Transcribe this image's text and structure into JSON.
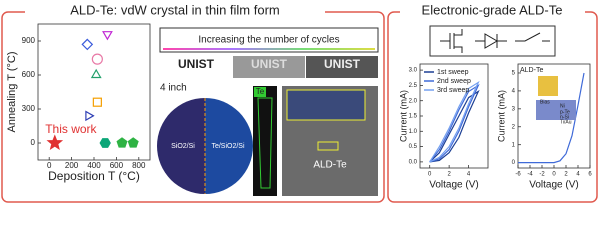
{
  "left_panel": {
    "title": "ALD-Te: vdW crystal in thin film form",
    "scatter": {
      "type": "scatter",
      "xlabel": "Deposition T (°C)",
      "ylabel": "Annealing T (°C)",
      "xlim": [
        -100,
        900
      ],
      "ylim": [
        -150,
        1050
      ],
      "xticks": [
        0,
        200,
        400,
        600,
        800
      ],
      "yticks": [
        0,
        300,
        600,
        900
      ],
      "annotation": "This work",
      "points": [
        {
          "x": 340,
          "y": 870,
          "marker": "diamond",
          "color": "#3b5bdb",
          "filled": false
        },
        {
          "x": 520,
          "y": 960,
          "marker": "triangle-down",
          "color": "#c026d3",
          "filled": false
        },
        {
          "x": 430,
          "y": 740,
          "marker": "circle",
          "color": "#e879a6",
          "filled": false
        },
        {
          "x": 420,
          "y": 600,
          "marker": "triangle-up",
          "color": "#22a06b",
          "filled": false
        },
        {
          "x": 430,
          "y": 360,
          "marker": "square",
          "color": "#f59f00",
          "filled": false
        },
        {
          "x": 350,
          "y": 240,
          "marker": "triangle-right",
          "color": "#2f3fb5",
          "filled": false
        },
        {
          "x": 50,
          "y": 0,
          "marker": "star",
          "color": "#e03131",
          "filled": true
        },
        {
          "x": 500,
          "y": 0,
          "marker": "hexagon",
          "color": "#0ca678",
          "filled": true
        },
        {
          "x": 650,
          "y": 0,
          "marker": "pentagon",
          "color": "#2fb344",
          "filled": true
        },
        {
          "x": 750,
          "y": 0,
          "marker": "pentagon",
          "color": "#2fb344",
          "filled": true
        }
      ]
    },
    "banner": "Increasing the number of cycles",
    "logos": [
      "UNIST",
      "UNIST",
      "UNIST"
    ],
    "wafer": {
      "label": "4 inch",
      "left": "SiO2/Si",
      "right": "Te/SiO2/Si"
    },
    "cross_section": "Te",
    "tem": "ALD-Te"
  },
  "right_panel": {
    "title": "Electronic-grade ALD-Te",
    "plots": [
      {
        "type": "line",
        "xlabel": "Voltage (V)",
        "ylabel": "Current (mA)",
        "xlim": [
          -1,
          6
        ],
        "ylim": [
          -0.2,
          3.2
        ],
        "xticks": [
          0,
          2,
          4
        ],
        "yticks": [
          {
            "value": 0,
            "label": "0.0"
          },
          {
            "value": 0.5,
            "label": "0.5"
          },
          {
            "value": 1,
            "label": "1.0"
          },
          {
            "value": 1.5,
            "label": "1.5"
          },
          {
            "value": 2,
            "label": "2.0"
          },
          {
            "value": 2.5,
            "label": "2.5"
          },
          {
            "value": 3,
            "label": "3.0"
          }
        ],
        "series": [
          {
            "name": "1st sweep",
            "color": "#1c3f94",
            "x": [
              0,
              1,
              2,
              3,
              4,
              5,
              4,
              3,
              2,
              1,
              0
            ],
            "values": [
              0,
              0.05,
              0.3,
              0.8,
              1.6,
              2.3,
              2.1,
              1.5,
              0.9,
              0.3,
              0
            ]
          },
          {
            "name": "2nd sweep",
            "color": "#3f6ad8",
            "x": [
              0,
              1,
              2,
              3,
              4,
              5,
              4,
              3,
              2,
              1,
              0
            ],
            "values": [
              0,
              0.1,
              0.4,
              1.0,
              1.8,
              2.5,
              2.3,
              1.7,
              1.0,
              0.4,
              0
            ]
          },
          {
            "name": "3rd sweep",
            "color": "#74a0f0",
            "x": [
              0,
              1,
              2,
              3,
              4,
              5,
              4,
              3,
              2,
              1,
              0
            ],
            "values": [
              0,
              0.15,
              0.5,
              1.1,
              1.9,
              2.6,
              2.4,
              1.8,
              1.1,
              0.5,
              0
            ]
          }
        ]
      },
      {
        "type": "line",
        "xlabel": "Voltage (V)",
        "ylabel": "Current (mA)",
        "xlim": [
          -6,
          6
        ],
        "ylim": [
          -0.3,
          5.5
        ],
        "xticks": [
          -6,
          -4,
          -2,
          0,
          2,
          4,
          6
        ],
        "yticks": [
          0,
          1,
          2,
          3,
          4,
          5
        ],
        "inset": [
          "ALD-Te",
          "Bias",
          "Ni",
          "p-Te",
          "n-Si",
          "Ti/Au"
        ],
        "series": [
          {
            "color": "#3f6ad8",
            "x": [
              -6,
              -5,
              -4,
              -3,
              -2,
              -1,
              0,
              1,
              2,
              3,
              4,
              5
            ],
            "values": [
              0,
              0,
              0,
              0,
              0,
              0,
              0,
              0.1,
              0.5,
              1.5,
              3.2,
              5.0
            ]
          }
        ]
      }
    ]
  }
}
